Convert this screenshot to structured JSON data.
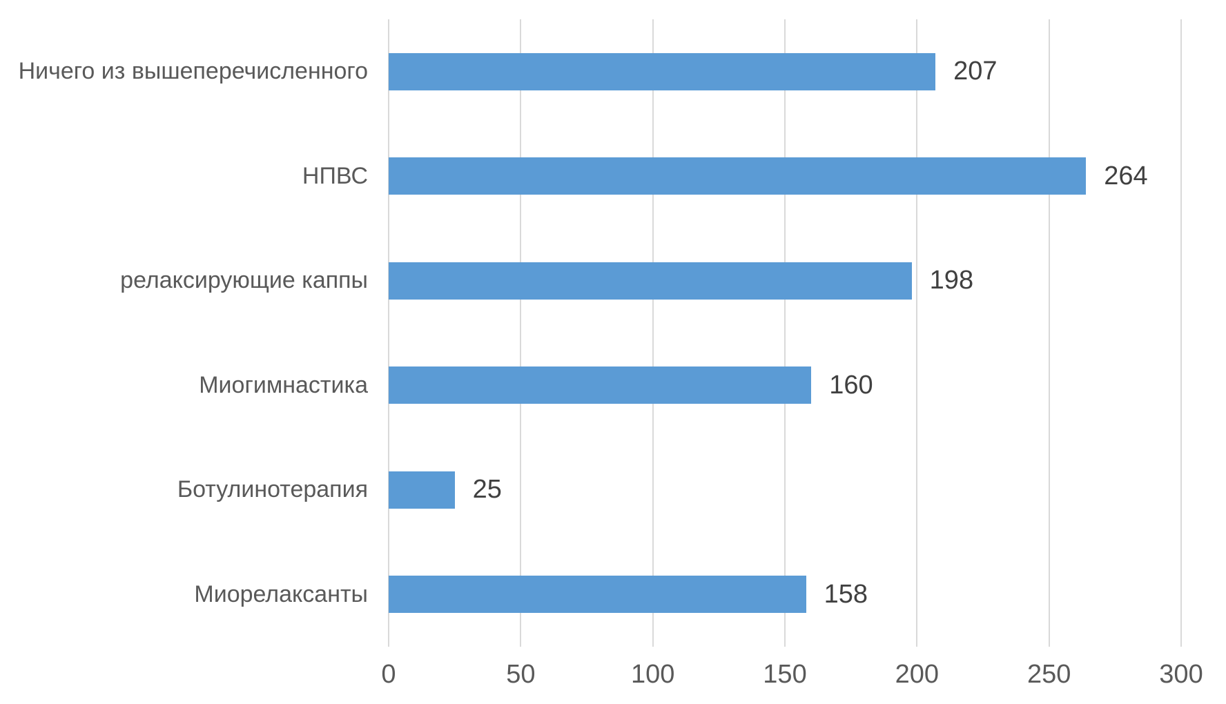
{
  "chart_data": {
    "type": "bar",
    "orientation": "horizontal",
    "title": "",
    "xlabel": "",
    "ylabel": "",
    "categories": [
      "Ничего из вышеперечисленного",
      "НПВС",
      "релаксирующие каппы",
      "Миогимнастика",
      "Ботулинотерапия",
      "Миорелаксанты"
    ],
    "values": [
      207,
      264,
      198,
      160,
      25,
      158
    ],
    "data_labels": [
      "207",
      "264",
      "198",
      "160",
      "25",
      "158"
    ],
    "xlim": [
      0,
      300
    ],
    "x_ticks": [
      0,
      50,
      100,
      150,
      200,
      250,
      300
    ],
    "grid": "vertical-gridlines-on",
    "legend": "none",
    "colors": {
      "bar": "#5B9BD5",
      "gridline": "#D9D9D9",
      "category_label": "#595959",
      "value_label": "#404040",
      "tick_label": "#595959",
      "background": "#FFFFFF"
    }
  }
}
